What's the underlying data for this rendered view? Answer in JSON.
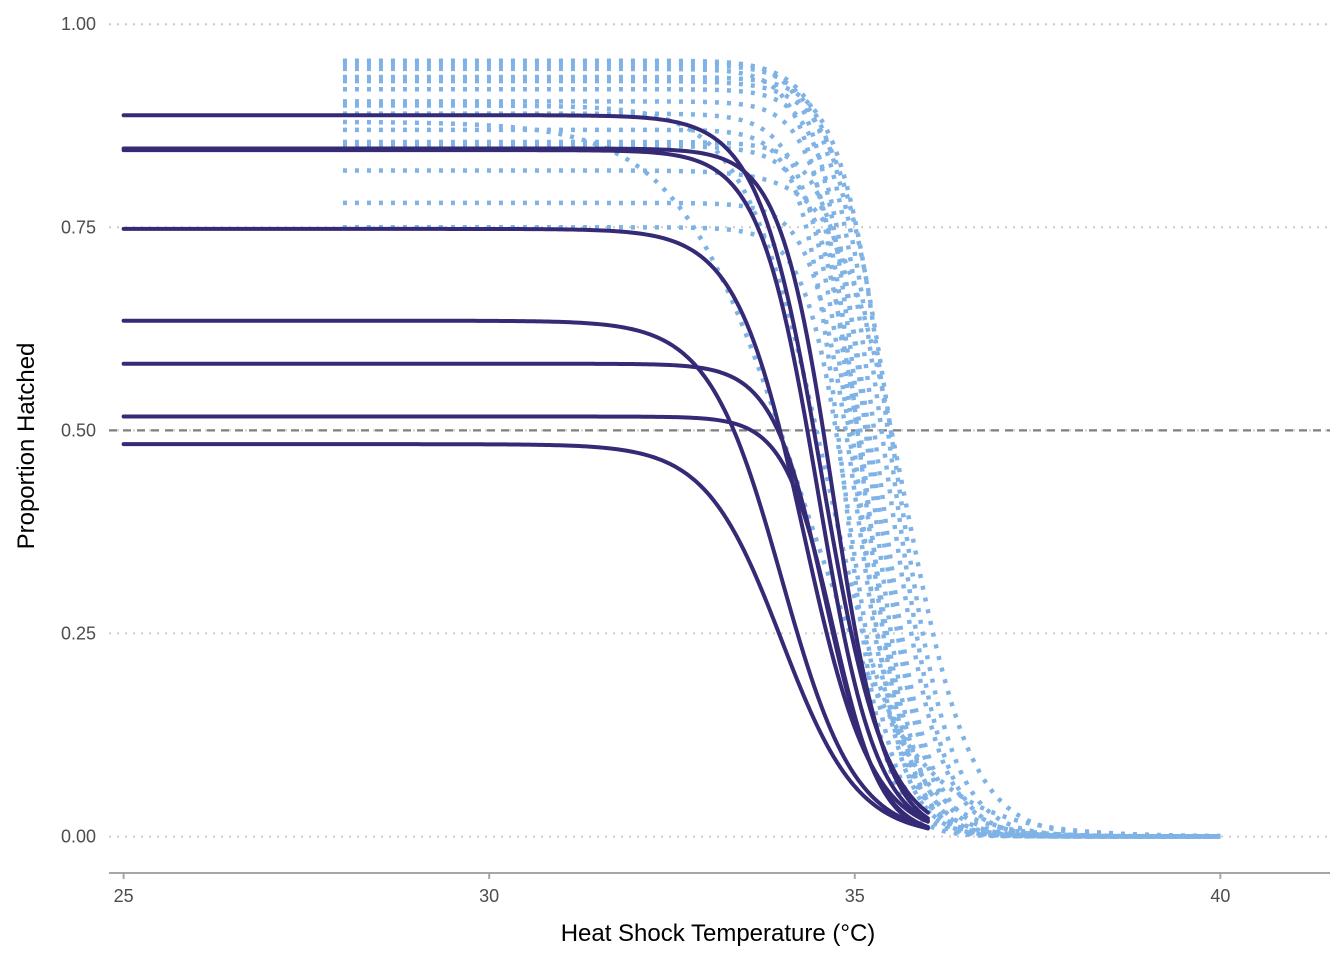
{
  "chart_data": {
    "type": "line",
    "title": "",
    "xlabel": "Heat Shock Temperature (°C)",
    "ylabel": "Proportion Hatched",
    "xlim": [
      24.8,
      41.5
    ],
    "ylim": [
      -0.045,
      1.02
    ],
    "x_ticks": [
      25,
      30,
      35,
      40
    ],
    "x_tick_labels": [
      "25",
      "30",
      "35",
      "40"
    ],
    "y_ticks": [
      0,
      0.25,
      0.5,
      0.75,
      1.0
    ],
    "y_tick_labels": [
      "0.00",
      "0.25",
      "0.50",
      "0.75",
      "1.00"
    ],
    "grid": "horizontal dotted at y ticks",
    "reference_line": {
      "y": 0.5,
      "style": "dashed",
      "color": "#7f7f7f"
    },
    "legend": "none",
    "colors": {
      "solid": "#352a75",
      "dotted": "#7fb2e5",
      "axis": "#a6a6a6",
      "grid": "#cccccc"
    },
    "solid_curves": [
      {
        "x_range": [
          25,
          36.0
        ],
        "top": 0.888,
        "midpoint": 34.55,
        "slope": 0.43
      },
      {
        "x_range": [
          25,
          36.0
        ],
        "top": 0.847,
        "midpoint": 34.7,
        "slope": 0.36
      },
      {
        "x_range": [
          25,
          36.0
        ],
        "top": 0.845,
        "midpoint": 34.5,
        "slope": 0.4
      },
      {
        "x_range": [
          25,
          36.0
        ],
        "top": 0.748,
        "midpoint": 34.3,
        "slope": 0.46
      },
      {
        "x_range": [
          25,
          35.95
        ],
        "top": 0.635,
        "midpoint": 34.0,
        "slope": 0.5
      },
      {
        "x_range": [
          25,
          36.0
        ],
        "top": 0.582,
        "midpoint": 34.6,
        "slope": 0.36
      },
      {
        "x_range": [
          25,
          36.0
        ],
        "top": 0.517,
        "midpoint": 34.7,
        "slope": 0.33
      },
      {
        "x_range": [
          25,
          36.0
        ],
        "top": 0.483,
        "midpoint": 34.0,
        "slope": 0.52
      }
    ],
    "dotted_curves": [
      {
        "x_range": [
          28,
          40
        ],
        "top": 0.955,
        "midpoint": 35.1,
        "slope": 0.3
      },
      {
        "x_range": [
          28,
          40
        ],
        "top": 0.95,
        "midpoint": 35.3,
        "slope": 0.33
      },
      {
        "x_range": [
          28,
          40
        ],
        "top": 0.945,
        "midpoint": 35.0,
        "slope": 0.3
      },
      {
        "x_range": [
          28,
          40
        ],
        "top": 0.935,
        "midpoint": 35.5,
        "slope": 0.34
      },
      {
        "x_range": [
          28,
          40
        ],
        "top": 0.92,
        "midpoint": 35.2,
        "slope": 0.3
      },
      {
        "x_range": [
          28,
          40
        ],
        "top": 0.905,
        "midpoint": 35.1,
        "slope": 0.3
      },
      {
        "x_range": [
          28,
          40
        ],
        "top": 0.89,
        "midpoint": 35.0,
        "slope": 0.33
      },
      {
        "x_range": [
          28,
          40
        ],
        "top": 0.87,
        "midpoint": 34.85,
        "slope": 0.28
      },
      {
        "x_range": [
          28,
          40
        ],
        "top": 0.855,
        "midpoint": 35.3,
        "slope": 0.32
      },
      {
        "x_range": [
          28,
          40
        ],
        "top": 0.85,
        "midpoint": 35.15,
        "slope": 0.33
      },
      {
        "x_range": [
          28,
          40
        ],
        "top": 0.78,
        "midpoint": 35.05,
        "slope": 0.3
      },
      {
        "x_range": [
          28,
          40
        ],
        "top": 0.75,
        "midpoint": 34.95,
        "slope": 0.3
      },
      {
        "x_range": [
          28,
          40
        ],
        "top": 0.955,
        "midpoint": 35.4,
        "slope": 0.36
      },
      {
        "x_range": [
          28,
          40
        ],
        "top": 0.93,
        "midpoint": 35.55,
        "slope": 0.38
      },
      {
        "x_range": [
          28,
          40
        ],
        "top": 0.9,
        "midpoint": 34.6,
        "slope": 0.55
      },
      {
        "x_range": [
          28,
          40
        ],
        "top": 0.88,
        "midpoint": 34.2,
        "slope": 0.8
      },
      {
        "x_range": [
          28,
          40
        ],
        "top": 0.82,
        "midpoint": 35.7,
        "slope": 0.45
      }
    ]
  }
}
